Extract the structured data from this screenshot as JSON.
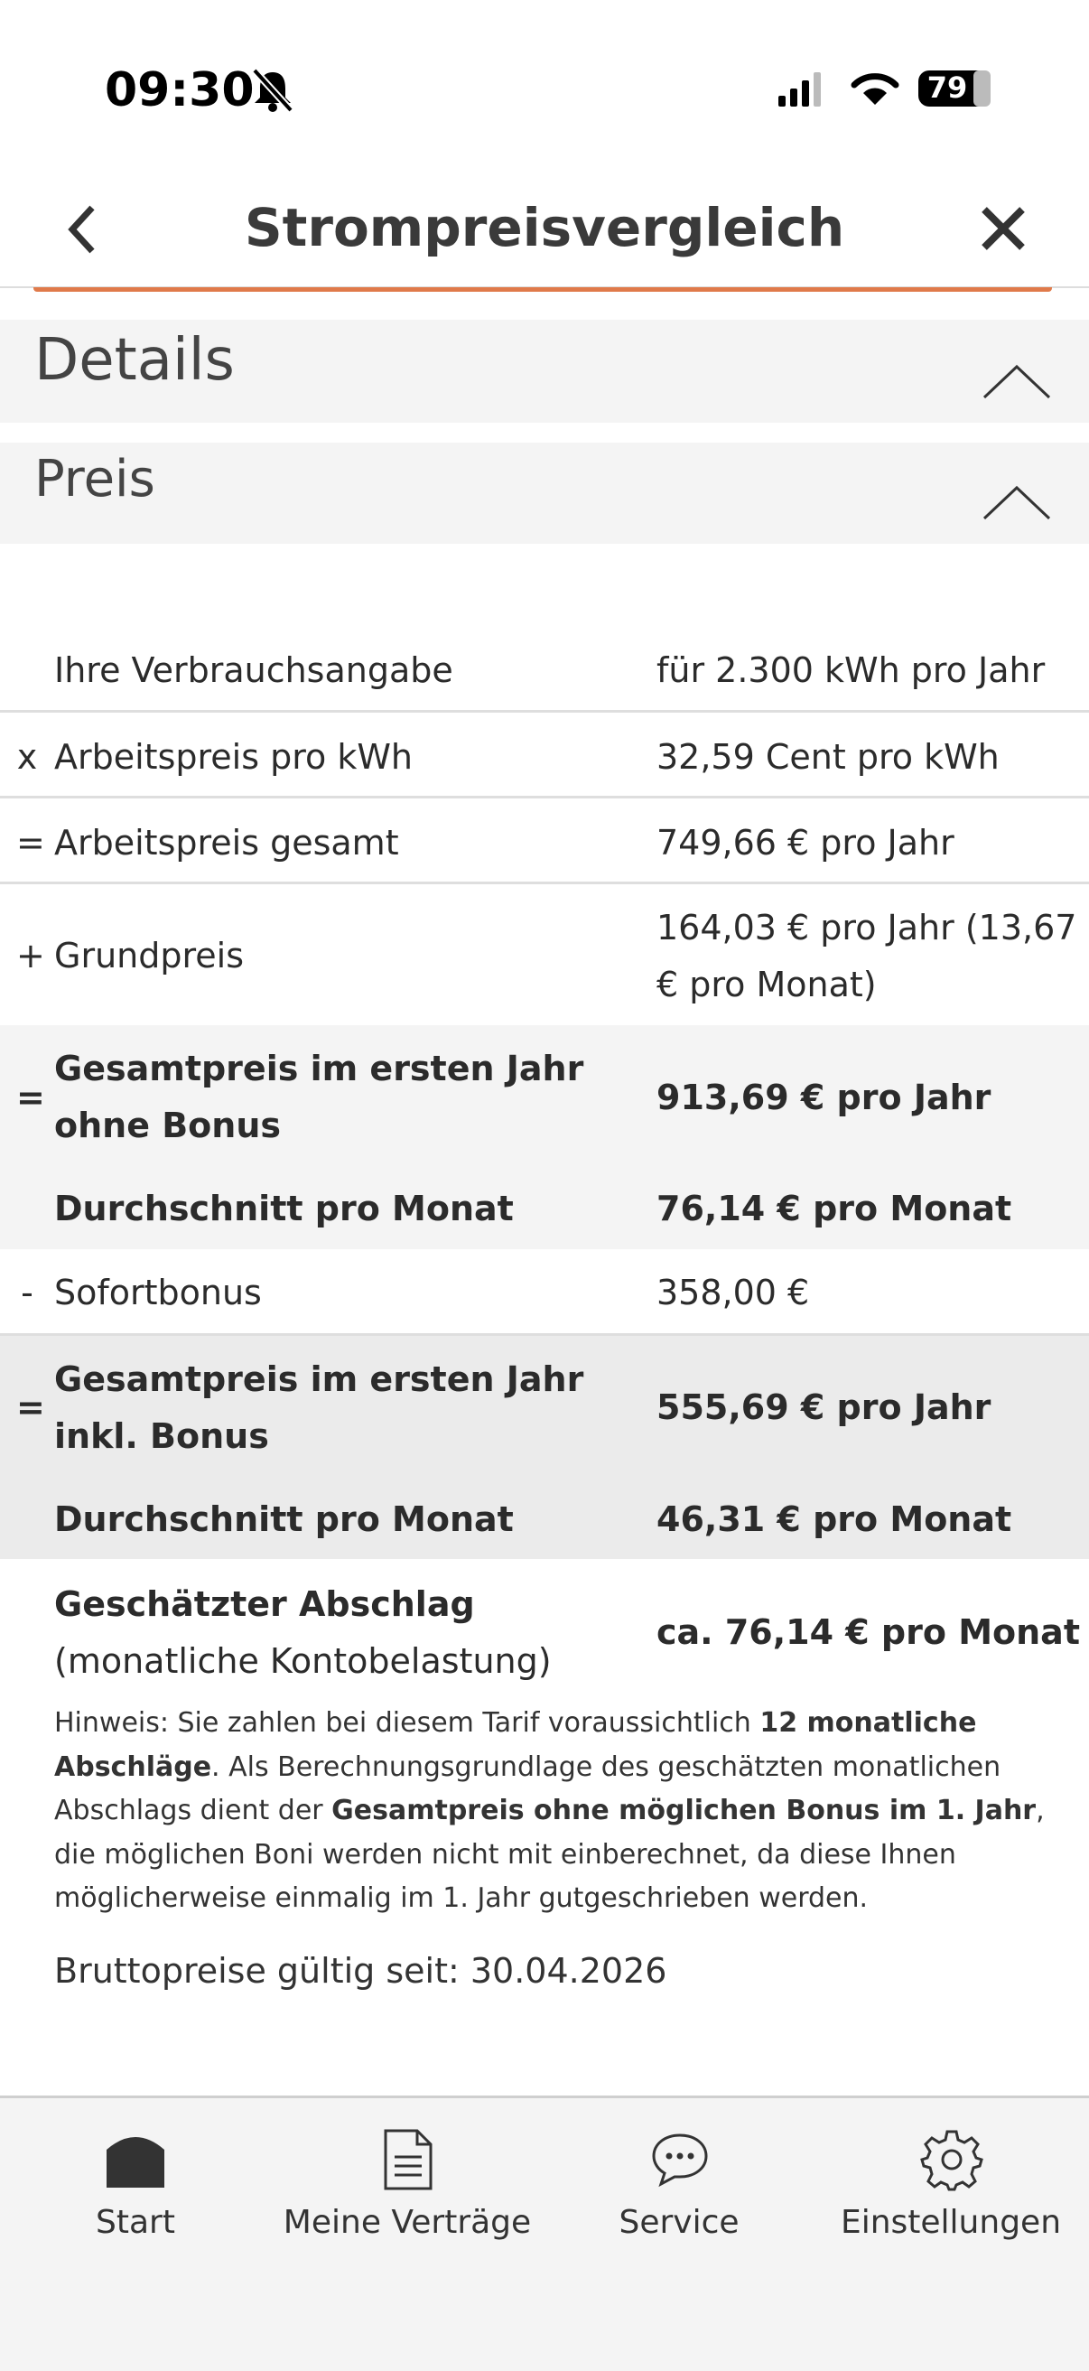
{
  "status_bar": {
    "time": "09:30",
    "battery": "79"
  },
  "header": {
    "title": "Strompreisvergleich"
  },
  "sections": [
    "Details",
    "Preis"
  ],
  "rows": [
    {
      "op": null,
      "label": "Ihre Verbrauchsangabe",
      "value": "für 2.300 kWh pro Jahr"
    },
    {
      "op": "x",
      "label": "Arbeitspreis pro kWh",
      "value": "32,59 Cent pro kWh"
    },
    {
      "op": "=",
      "label": "Arbeitspreis gesamt",
      "value": "749,66 € pro Jahr"
    },
    {
      "op": "+",
      "label": "Grundpreis",
      "value": "164,03 € pro Jahr (13,67 € pro Monat)"
    },
    {
      "op": "=",
      "label": "Gesamtpreis im ersten Jahr ohne Bonus",
      "value": "913,69 € pro Jahr"
    },
    {
      "op": null,
      "label": "Durchschnitt pro Monat",
      "value": "76,14 € pro Monat"
    },
    {
      "op": "-",
      "label": "Sofortbonus",
      "value": "358,00 €"
    },
    {
      "op": "=",
      "label": "Gesamtpreis im ersten Jahr inkl. Bonus",
      "value": "555,69 € pro Jahr"
    },
    {
      "op": null,
      "label": "Durchschnitt pro Monat",
      "value": "46,31 € pro Monat"
    }
  ],
  "estimate": {
    "label_bold": "Geschätzter Abschlag",
    "label_rest": " (monatliche Kontobelastung)",
    "value": "ca. 76,14 € pro Monat"
  },
  "hint": [
    "Hinweis: Sie zahlen bei diesem Tarif voraussichtlich ",
    "12 monatliche Abschläge",
    ". Als Berechnungsgrundlage des geschätzten monatlichen Abschlags dient der ",
    "Gesamtpreis ohne möglichen Bonus im 1. Jahr",
    ", die möglichen Boni werden nicht mit einberechnet, da diese Ihnen möglicherweise einmalig im 1. Jahr gutgeschrieben werden."
  ],
  "footer_note": "Bruttopreise gültig seit: 30.04.2026",
  "tabs": [
    "Start",
    "Meine Verträge",
    "Service",
    "Einstellungen"
  ]
}
